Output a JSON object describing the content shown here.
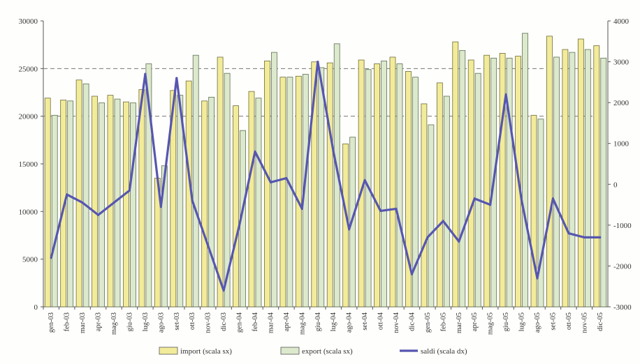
{
  "chart_data": {
    "type": "bar",
    "categories": [
      "gen-03",
      "feb-03",
      "mar-03",
      "apr-03",
      "mag-03",
      "giu-03",
      "lug-03",
      "ago-03",
      "set-03",
      "ott-03",
      "nov-03",
      "dic-03",
      "gen-04",
      "feb-04",
      "mar-04",
      "apr-04",
      "mag-04",
      "giu-04",
      "lug-04",
      "ago-04",
      "set-04",
      "ott-04",
      "nov-04",
      "dic-04",
      "gen-05",
      "feb-05",
      "mar-05",
      "apr-05",
      "mag-05",
      "giu-05",
      "lug-05",
      "ago-05",
      "set-05",
      "ott-05",
      "nov-05",
      "dic-05"
    ],
    "series": [
      {
        "name": "import (scala sx)",
        "axis": "left",
        "type": "bar",
        "color": "#f2ec9a",
        "values": [
          21900,
          21700,
          23800,
          22100,
          22200,
          21500,
          22800,
          13500,
          22700,
          23700,
          21600,
          26200,
          21100,
          22600,
          25800,
          24100,
          24200,
          25700,
          25600,
          17100,
          25900,
          25500,
          26200,
          24700,
          21300,
          23500,
          27800,
          25900,
          26400,
          26600,
          26300,
          20100,
          28400,
          27000,
          28100,
          27400
        ]
      },
      {
        "name": "export (scala sx)",
        "axis": "left",
        "type": "bar",
        "color": "#dce9cc",
        "values": [
          20100,
          21600,
          23400,
          21400,
          21800,
          21400,
          25500,
          14800,
          22200,
          26400,
          22000,
          24500,
          18500,
          21900,
          26700,
          24100,
          24400,
          25100,
          27600,
          17800,
          24900,
          25800,
          25500,
          24100,
          19100,
          22100,
          26900,
          24500,
          26100,
          26100,
          28700,
          19700,
          26200,
          26700,
          27000,
          26100
        ]
      },
      {
        "name": "saldi (scala dx)",
        "axis": "right",
        "type": "line",
        "color": "#5656b0",
        "values": [
          -1800,
          -250,
          -450,
          -750,
          -450,
          -150,
          2700,
          -550,
          2600,
          -400,
          -1500,
          -2600,
          -1000,
          800,
          50,
          150,
          -600,
          3000,
          800,
          -1100,
          100,
          -650,
          -600,
          -2200,
          -1300,
          -900,
          -1400,
          -350,
          -500,
          2200,
          -400,
          -2300,
          -350,
          -1200,
          -1300,
          -1300
        ]
      }
    ],
    "yaxis_left": {
      "ylim": [
        0,
        30000
      ],
      "ticks": [
        0,
        5000,
        10000,
        15000,
        20000,
        25000,
        30000
      ]
    },
    "yaxis_right": {
      "ylim": [
        -3000,
        4000
      ],
      "ticks": [
        -3000,
        -2000,
        -1000,
        0,
        1000,
        2000,
        3000,
        4000
      ]
    },
    "reference_lines": [
      {
        "axis": "left",
        "value": 25000,
        "style": "dashed"
      },
      {
        "axis": "left",
        "value": 20000,
        "style": "dashed"
      }
    ],
    "grid": false,
    "legend": {
      "position": "bottom",
      "items": [
        {
          "label": "import (scala sx)",
          "swatch": "bar",
          "color": "#f2ec9a"
        },
        {
          "label": "export (scala sx)",
          "swatch": "bar",
          "color": "#dce9cc"
        },
        {
          "label": "saldi (scala dx)",
          "swatch": "line",
          "color": "#5656b0"
        }
      ]
    }
  }
}
